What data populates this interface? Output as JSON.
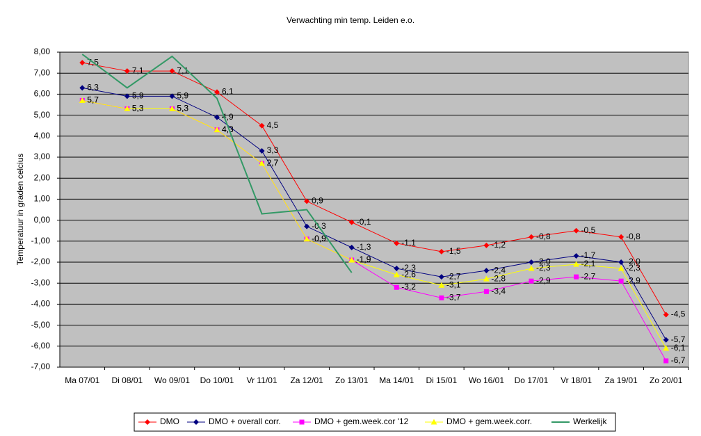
{
  "chart_data": {
    "type": "line",
    "title": "Verwachting min temp. Leiden e.o.",
    "y_label": "Temperatuur in graden celcius",
    "categories": [
      "Ma 07/01",
      "Di 08/01",
      "Wo 09/01",
      "Do 10/01",
      "Vr 11/01",
      "Za 12/01",
      "Zo 13/01",
      "Ma 14/01",
      "Di 15/01",
      "Wo 16/01",
      "Do 17/01",
      "Vr 18/01",
      "Za 19/01",
      "Zo 20/01"
    ],
    "ylim": [
      -7,
      8
    ],
    "yticks": [
      {
        "value": 8,
        "label": "8,00"
      },
      {
        "value": 7,
        "label": "7,00"
      },
      {
        "value": 6,
        "label": "6,00"
      },
      {
        "value": 5,
        "label": "5,00"
      },
      {
        "value": 4,
        "label": "4,00"
      },
      {
        "value": 3,
        "label": "3,00"
      },
      {
        "value": 2,
        "label": "2,00"
      },
      {
        "value": 1,
        "label": "1,00"
      },
      {
        "value": 0,
        "label": "0,00"
      },
      {
        "value": -1,
        "label": "-1,00"
      },
      {
        "value": -2,
        "label": "-2,00"
      },
      {
        "value": -3,
        "label": "-3,00"
      },
      {
        "value": -4,
        "label": "-4,00"
      },
      {
        "value": -5,
        "label": "-5,00"
      },
      {
        "value": -6,
        "label": "-6,00"
      },
      {
        "value": -7,
        "label": "-7,00"
      }
    ],
    "grid": true,
    "legend": "bottom",
    "series": [
      {
        "name": "DMO",
        "color": "#ff0000",
        "marker": "diamond",
        "values": [
          7.5,
          7.1,
          7.1,
          6.1,
          4.5,
          0.9,
          -0.1,
          -1.1,
          -1.5,
          -1.2,
          -0.8,
          -0.5,
          -0.8,
          -4.5
        ],
        "value_labels": [
          "7,5",
          "7,1",
          "7,1",
          "6,1",
          "4,5",
          "0,9",
          "-0,1",
          "-1,1",
          "-1,5",
          "-1,2",
          "-0,8",
          "-0,5",
          "-0,8",
          "-4,5"
        ]
      },
      {
        "name": "DMO + overall corr.",
        "color": "#000080",
        "marker": "diamond",
        "values": [
          6.3,
          5.9,
          5.9,
          4.9,
          3.3,
          -0.3,
          -1.3,
          -2.3,
          -2.7,
          -2.4,
          -2.0,
          -1.7,
          -2.0,
          -5.7
        ],
        "value_labels": [
          "6,3",
          "5,9",
          "5,9",
          "4,9",
          "3,3",
          "-0,3",
          "-1,3",
          "-2,3",
          "-2,7",
          "-2,4",
          "-2,0",
          "-1,7",
          "-2,0",
          "-5,7"
        ]
      },
      {
        "name": "DMO + gem.week.cor '12",
        "color": "#ff00ff",
        "marker": "square",
        "values": [
          5.7,
          5.3,
          5.3,
          4.3,
          2.7,
          -0.9,
          -1.9,
          -3.2,
          -3.7,
          -3.4,
          -2.9,
          -2.7,
          -2.9,
          -6.7
        ],
        "value_labels": [
          "5,7",
          "5,3",
          "5,3",
          "4,3",
          "2,7",
          "-0,9",
          "-1,9",
          "-3,2",
          "-3,7",
          "-3,4",
          "-2,9",
          "-2,7",
          "-2,9",
          "-6,7"
        ]
      },
      {
        "name": "DMO + gem.week.corr.",
        "color": "#ffff00",
        "marker": "triangle",
        "values": [
          5.7,
          5.3,
          5.3,
          4.3,
          2.7,
          -0.9,
          -1.9,
          -2.6,
          -3.1,
          -2.8,
          -2.3,
          -2.1,
          -2.3,
          -6.1
        ],
        "value_labels": [
          "5,7",
          "5,3",
          "5,3",
          "4,3",
          "2,7",
          "-0,9",
          "-1,9",
          "-2,6",
          "-3,1",
          "-2,8",
          "-2,3",
          "-2,1",
          "-2,3",
          "-6,1"
        ]
      },
      {
        "name": "Werkelijk",
        "color": "#339966",
        "marker": "none",
        "values": [
          7.9,
          6.3,
          7.8,
          5.8,
          0.3,
          0.5,
          -2.5,
          null,
          null,
          null,
          null,
          null,
          null,
          null
        ]
      }
    ]
  }
}
